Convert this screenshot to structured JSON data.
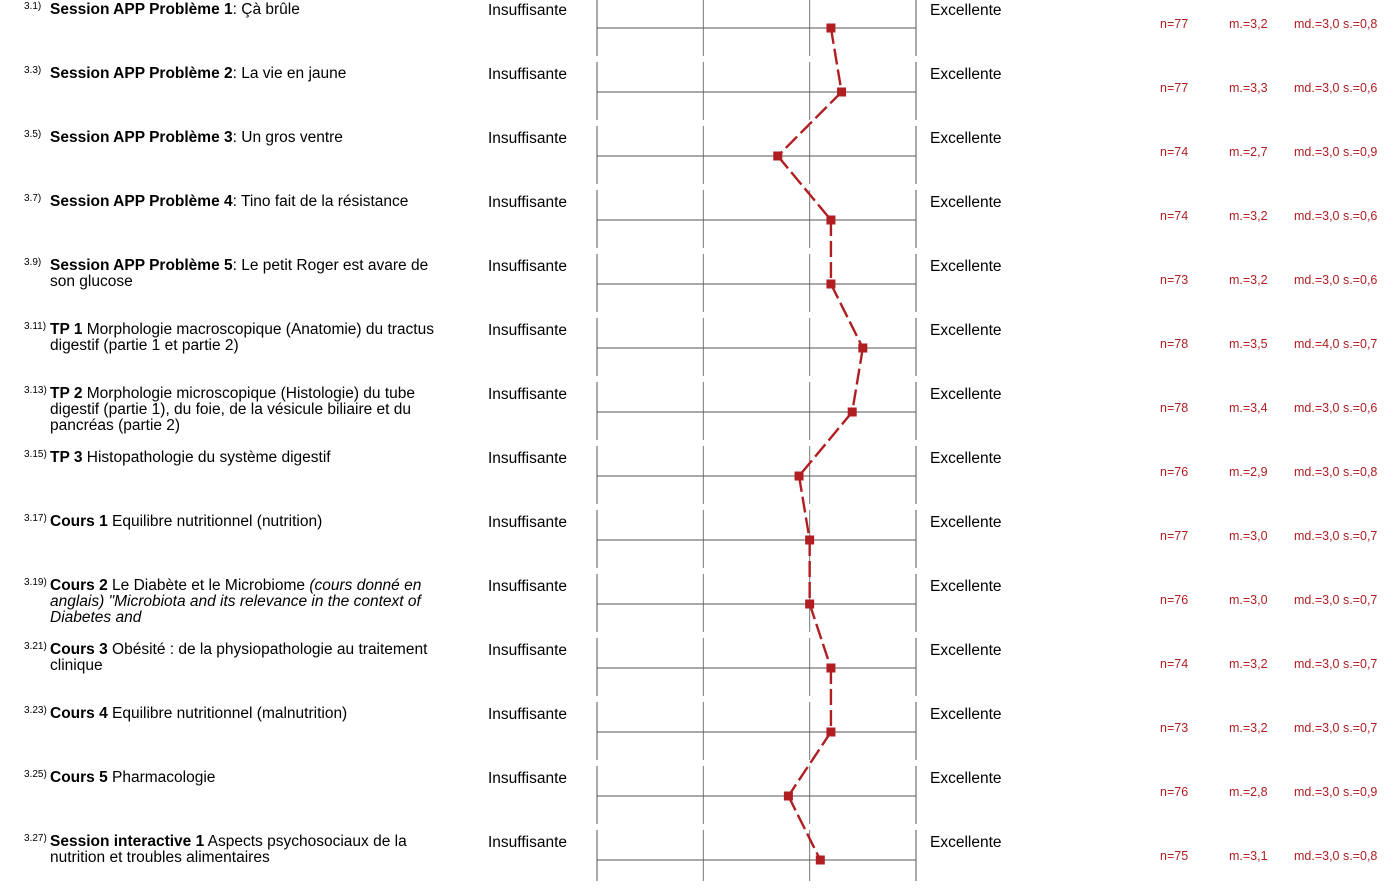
{
  "chart_data": {
    "type": "line",
    "scale_low_label": "Insuffisante",
    "scale_high_label": "Excellente",
    "xlim": [
      1,
      4
    ],
    "grid": true,
    "color": "#b01e22",
    "items": [
      {
        "num": "3.1)",
        "bold": "Session APP Problème 1",
        "rest": ": Çà brûle",
        "italic": "",
        "n": "n=77",
        "mean_label": "m.=3,2",
        "md_sd": "md.=3,0 s.=0,8",
        "mean": 3.2
      },
      {
        "num": "3.3)",
        "bold": "Session APP Problème 2",
        "rest": ": La vie en jaune",
        "italic": "",
        "n": "n=77",
        "mean_label": "m.=3,3",
        "md_sd": "md.=3,0 s.=0,6",
        "mean": 3.3
      },
      {
        "num": "3.5)",
        "bold": "Session APP Problème 3",
        "rest": ": Un gros ventre",
        "italic": "",
        "n": "n=74",
        "mean_label": "m.=2,7",
        "md_sd": "md.=3,0 s.=0,9",
        "mean": 2.7
      },
      {
        "num": "3.7)",
        "bold": "Session APP Problème 4",
        "rest": ": Tino fait de la résistance",
        "italic": "",
        "n": "n=74",
        "mean_label": "m.=3,2",
        "md_sd": "md.=3,0 s.=0,6",
        "mean": 3.2
      },
      {
        "num": "3.9)",
        "bold": "Session APP Problème 5",
        "rest": ": Le petit Roger est avare de son glucose",
        "italic": "",
        "n": "n=73",
        "mean_label": "m.=3,2",
        "md_sd": "md.=3,0 s.=0,6",
        "mean": 3.2
      },
      {
        "num": "3.11)",
        "bold": "TP 1",
        "rest": " Morphologie macroscopique (Anatomie) du tractus digestif (partie 1 et partie 2)",
        "italic": "",
        "n": "n=78",
        "mean_label": "m.=3,5",
        "md_sd": "md.=4,0 s.=0,7",
        "mean": 3.5
      },
      {
        "num": "3.13)",
        "bold": "TP 2",
        "rest": " Morphologie microscopique (Histologie) du tube digestif (partie 1), du foie, de la vésicule biliaire et du pancréas (partie 2)",
        "italic": "",
        "n": "n=78",
        "mean_label": "m.=3,4",
        "md_sd": "md.=3,0 s.=0,6",
        "mean": 3.4
      },
      {
        "num": "3.15)",
        "bold": "TP 3",
        "rest": " Histopathologie du système digestif",
        "italic": "",
        "n": "n=76",
        "mean_label": "m.=2,9",
        "md_sd": "md.=3,0 s.=0,8",
        "mean": 2.9
      },
      {
        "num": "3.17)",
        "bold": "Cours 1",
        "rest": " Equilibre nutritionnel (nutrition)",
        "italic": "",
        "n": "n=77",
        "mean_label": "m.=3,0",
        "md_sd": "md.=3,0 s.=0,7",
        "mean": 3.0
      },
      {
        "num": "3.19)",
        "bold": "Cours 2",
        "rest": " Le Diabète et le Microbiome ",
        "italic": "(cours donné en anglais) \"Microbiota and its relevance in the context of Diabetes and",
        "n": "n=76",
        "mean_label": "m.=3,0",
        "md_sd": "md.=3,0 s.=0,7",
        "mean": 3.0
      },
      {
        "num": "3.21)",
        "bold": "Cours 3",
        "rest": " Obésité : de la physiopathologie au traitement clinique",
        "italic": "",
        "n": "n=74",
        "mean_label": "m.=3,2",
        "md_sd": "md.=3,0 s.=0,7",
        "mean": 3.2
      },
      {
        "num": "3.23)",
        "bold": "Cours 4",
        "rest": " Equilibre nutritionnel (malnutrition)",
        "italic": "",
        "n": "n=73",
        "mean_label": "m.=3,2",
        "md_sd": "md.=3,0 s.=0,7",
        "mean": 3.2
      },
      {
        "num": "3.25)",
        "bold": "Cours 5",
        "rest": " Pharmacologie",
        "italic": "",
        "n": "n=76",
        "mean_label": "m.=2,8",
        "md_sd": "md.=3,0 s.=0,9",
        "mean": 2.8
      },
      {
        "num": "3.27)",
        "bold": "Session interactive 1",
        "rest": " Aspects psychosociaux de la nutrition et troubles alimentaires",
        "italic": "",
        "n": "n=75",
        "mean_label": "m.=3,1",
        "md_sd": "md.=3,0 s.=0,8",
        "mean": 3.1
      }
    ]
  }
}
